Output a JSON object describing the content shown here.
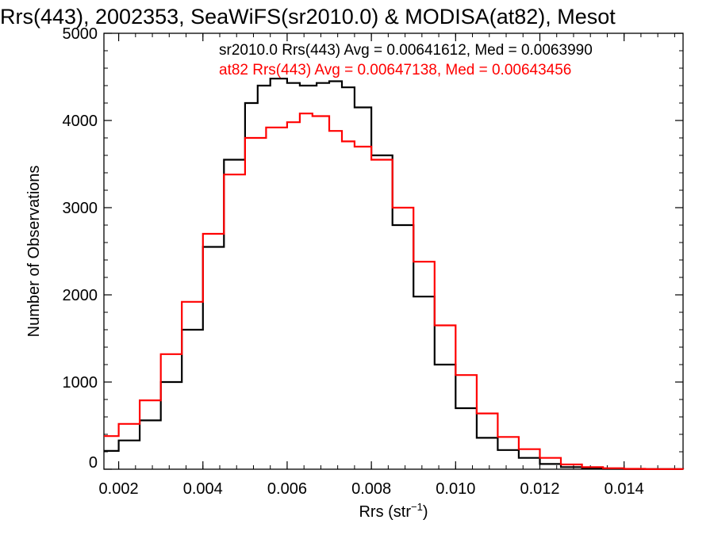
{
  "chart_data": {
    "type": "line",
    "title": "Rrs(443), 2002353, SeaWiFS(sr2010.0) & MODISA(at82), Mesot",
    "xlabel_main": "Rrs (str",
    "xlabel_sup": "−1",
    "xlabel_close": ")",
    "ylabel": "Number of Observations",
    "xlim": [
      0.00165,
      0.0154
    ],
    "ylim": [
      0,
      5000
    ],
    "x_ticks": [
      0.002,
      0.004,
      0.006,
      0.008,
      0.01,
      0.012,
      0.014
    ],
    "x_tick_labels": [
      "0.002",
      "0.004",
      "0.006",
      "0.008",
      "0.010",
      "0.012",
      "0.014"
    ],
    "y_ticks": [
      0,
      1000,
      2000,
      3000,
      4000,
      5000
    ],
    "y_tick_labels": [
      "0",
      "1000",
      "2000",
      "3000",
      "4000",
      "5000"
    ],
    "grid": false,
    "step": true,
    "annotations": [
      {
        "text": "sr2010.0 Rrs(443) Avg = 0.00641612, Med = 0.0063990",
        "color": "#000000"
      },
      {
        "text": "at82 Rrs(443) Avg = 0.00647138, Med = 0.00643456",
        "color": "#ff0000"
      }
    ],
    "series": [
      {
        "color": "#000000",
        "points": [
          [
            0.00165,
            210
          ],
          [
            0.002,
            330
          ],
          [
            0.0025,
            560
          ],
          [
            0.003,
            1000
          ],
          [
            0.0035,
            1600
          ],
          [
            0.004,
            2550
          ],
          [
            0.0045,
            3550
          ],
          [
            0.005,
            4200
          ],
          [
            0.0053,
            4400
          ],
          [
            0.0056,
            4480
          ],
          [
            0.006,
            4430
          ],
          [
            0.0063,
            4400
          ],
          [
            0.0067,
            4430
          ],
          [
            0.007,
            4450
          ],
          [
            0.0073,
            4380
          ],
          [
            0.0076,
            4150
          ],
          [
            0.008,
            3600
          ],
          [
            0.0085,
            2800
          ],
          [
            0.009,
            1980
          ],
          [
            0.0095,
            1200
          ],
          [
            0.01,
            700
          ],
          [
            0.0105,
            360
          ],
          [
            0.011,
            220
          ],
          [
            0.0115,
            130
          ],
          [
            0.012,
            60
          ],
          [
            0.0125,
            25
          ],
          [
            0.013,
            10
          ],
          [
            0.0135,
            5
          ],
          [
            0.014,
            2
          ],
          [
            0.0154,
            0
          ]
        ]
      },
      {
        "color": "#ff0000",
        "points": [
          [
            0.00165,
            380
          ],
          [
            0.002,
            520
          ],
          [
            0.0025,
            790
          ],
          [
            0.003,
            1320
          ],
          [
            0.0035,
            1920
          ],
          [
            0.004,
            2700
          ],
          [
            0.0045,
            3380
          ],
          [
            0.005,
            3800
          ],
          [
            0.0055,
            3920
          ],
          [
            0.006,
            3980
          ],
          [
            0.0063,
            4080
          ],
          [
            0.0066,
            4050
          ],
          [
            0.007,
            3880
          ],
          [
            0.0073,
            3760
          ],
          [
            0.0076,
            3700
          ],
          [
            0.008,
            3550
          ],
          [
            0.0085,
            3000
          ],
          [
            0.009,
            2380
          ],
          [
            0.0095,
            1650
          ],
          [
            0.01,
            1080
          ],
          [
            0.0105,
            640
          ],
          [
            0.011,
            370
          ],
          [
            0.0115,
            230
          ],
          [
            0.012,
            130
          ],
          [
            0.0125,
            55
          ],
          [
            0.013,
            25
          ],
          [
            0.0135,
            12
          ],
          [
            0.014,
            5
          ],
          [
            0.0145,
            2
          ],
          [
            0.0154,
            0
          ]
        ]
      }
    ]
  }
}
